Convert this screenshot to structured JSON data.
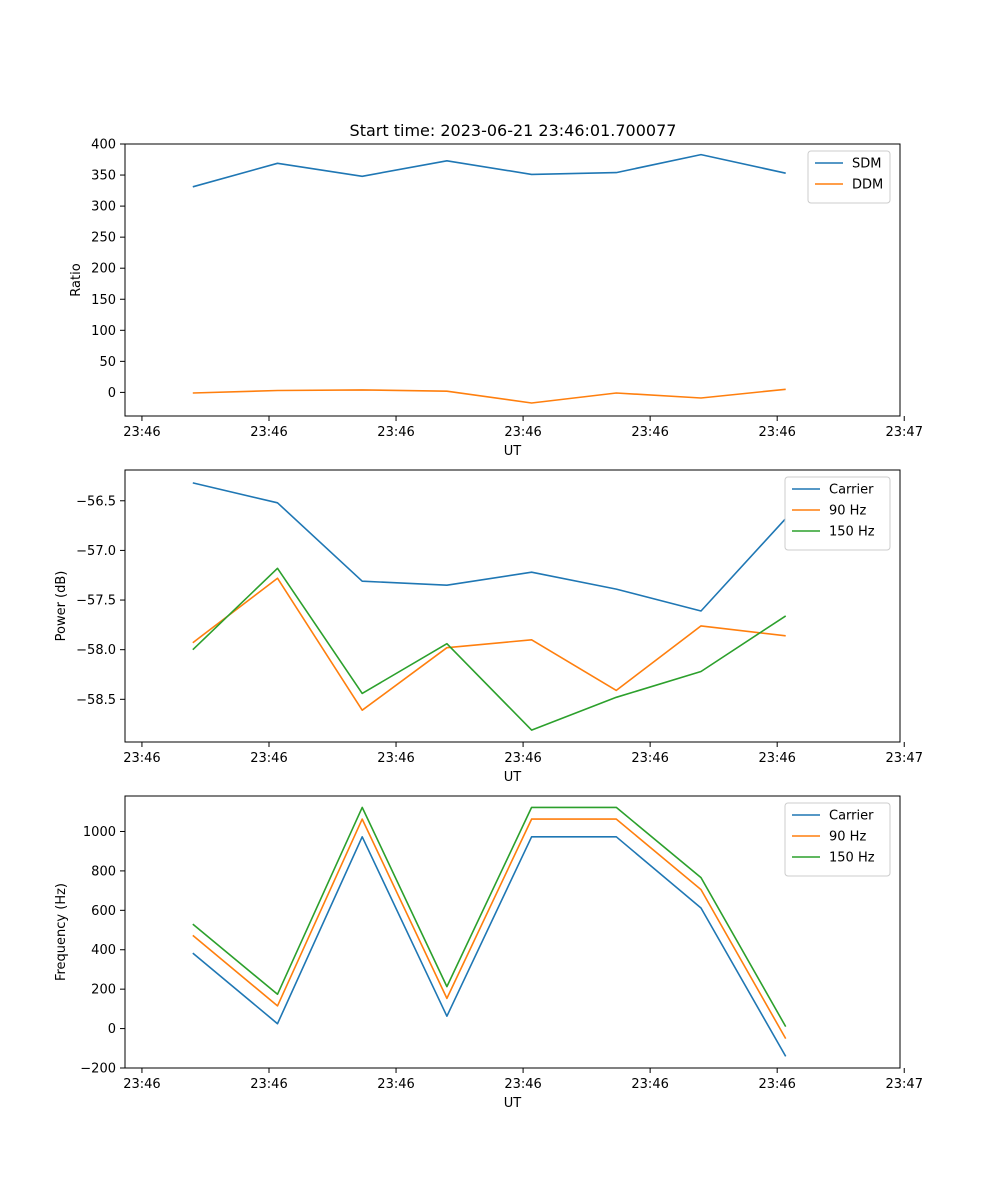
{
  "figure": {
    "title": "Start time: 2023-06-21 23:46:01.700077"
  },
  "chart_data": [
    {
      "type": "line",
      "title": "Start time: 2023-06-21 23:46:01.700077",
      "xlabel": "UT",
      "ylabel": "Ratio",
      "x": [
        1,
        2,
        3,
        4,
        5,
        6,
        7,
        8
      ],
      "xlim": [
        0.2,
        9.35
      ],
      "x_ticks": [
        0.4,
        1.9,
        3.4,
        4.9,
        6.4,
        7.9,
        9.4
      ],
      "x_tick_labels": [
        "23:46",
        "23:46",
        "23:46",
        "23:46",
        "23:46",
        "23:46",
        "23:47"
      ],
      "ylim": [
        -38,
        400
      ],
      "y_ticks": [
        0,
        50,
        100,
        150,
        200,
        250,
        300,
        350,
        400
      ],
      "y_tick_labels": [
        "0",
        "50",
        "100",
        "150",
        "200",
        "250",
        "300",
        "350",
        "400"
      ],
      "legend_position": "top-right",
      "grid": false,
      "series": [
        {
          "name": "SDM",
          "color": "#1f77b4",
          "values": [
            331,
            369,
            348,
            373,
            351,
            354,
            383,
            353
          ]
        },
        {
          "name": "DDM",
          "color": "#ff7f0e",
          "values": [
            -1,
            3,
            4,
            2,
            -17,
            -1,
            -9,
            5
          ]
        }
      ]
    },
    {
      "type": "line",
      "xlabel": "UT",
      "ylabel": "Power (dB)",
      "x": [
        1,
        2,
        3,
        4,
        5,
        6,
        7,
        8
      ],
      "xlim": [
        0.2,
        9.35
      ],
      "x_ticks": [
        0.4,
        1.9,
        3.4,
        4.9,
        6.4,
        7.9,
        9.4
      ],
      "x_tick_labels": [
        "23:46",
        "23:46",
        "23:46",
        "23:46",
        "23:46",
        "23:46",
        "23:47"
      ],
      "ylim": [
        -58.93,
        -56.19
      ],
      "y_ticks": [
        -58.5,
        -58.0,
        -57.5,
        -57.0,
        -56.5
      ],
      "y_tick_labels": [
        "−58.5",
        "−58.0",
        "−57.5",
        "−57.0",
        "−56.5"
      ],
      "legend_position": "top-right",
      "grid": false,
      "series": [
        {
          "name": "Carrier",
          "color": "#1f77b4",
          "values": [
            -56.32,
            -56.52,
            -57.31,
            -57.35,
            -57.22,
            -57.39,
            -57.61,
            -56.68
          ]
        },
        {
          "name": "90 Hz",
          "color": "#ff7f0e",
          "values": [
            -57.93,
            -57.28,
            -58.61,
            -57.98,
            -57.9,
            -58.41,
            -57.76,
            -57.86
          ]
        },
        {
          "name": "150 Hz",
          "color": "#2ca02c",
          "values": [
            -58.0,
            -57.18,
            -58.44,
            -57.94,
            -58.81,
            -58.48,
            -58.22,
            -57.66
          ]
        }
      ]
    },
    {
      "type": "line",
      "xlabel": "UT",
      "ylabel": "Frequency (Hz)",
      "x": [
        1,
        2,
        3,
        4,
        5,
        6,
        7,
        8
      ],
      "xlim": [
        0.2,
        9.35
      ],
      "x_ticks": [
        0.4,
        1.9,
        3.4,
        4.9,
        6.4,
        7.9,
        9.4
      ],
      "x_tick_labels": [
        "23:46",
        "23:46",
        "23:46",
        "23:46",
        "23:46",
        "23:46",
        "23:47"
      ],
      "ylim": [
        -200,
        1180
      ],
      "y_ticks": [
        -200,
        0,
        200,
        400,
        600,
        800,
        1000
      ],
      "y_tick_labels": [
        "−200",
        "0",
        "200",
        "400",
        "600",
        "800",
        "1000"
      ],
      "legend_position": "top-right",
      "grid": false,
      "series": [
        {
          "name": "Carrier",
          "color": "#1f77b4",
          "values": [
            383,
            25,
            973,
            63,
            973,
            973,
            612,
            -141
          ]
        },
        {
          "name": "90 Hz",
          "color": "#ff7f0e",
          "values": [
            473,
            115,
            1063,
            153,
            1063,
            1063,
            705,
            -51
          ]
        },
        {
          "name": "150 Hz",
          "color": "#2ca02c",
          "values": [
            530,
            174,
            1122,
            213,
            1122,
            1122,
            766,
            10
          ]
        }
      ]
    }
  ]
}
